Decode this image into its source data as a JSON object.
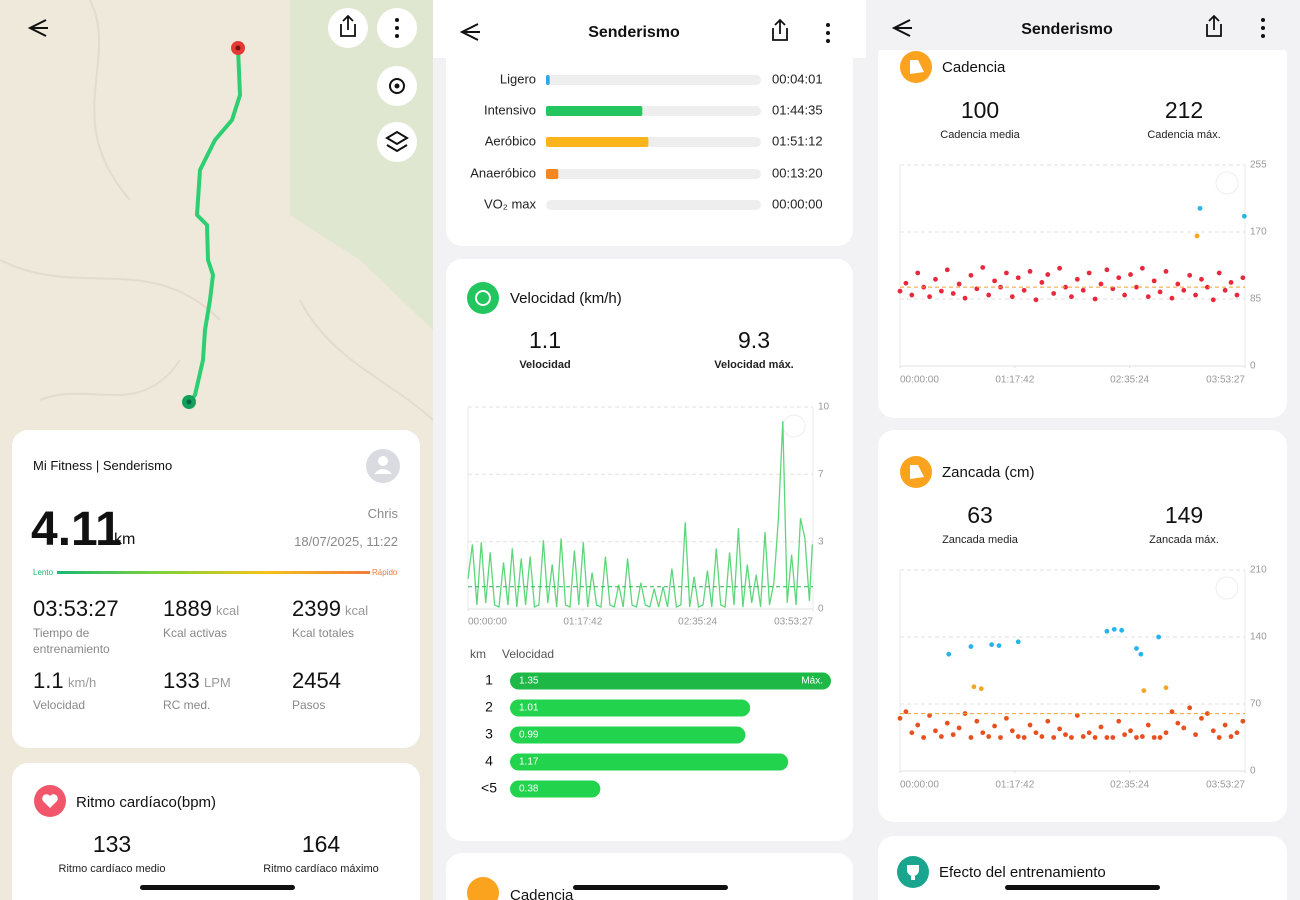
{
  "map_screen": {
    "card": {
      "app": "Mi Fitness | Senderismo",
      "user": "Chris",
      "distance": "4.11",
      "distance_unit": "km",
      "datetime": "18/07/2025, 11:22",
      "scale_low": "Lento",
      "scale_high": "Rápido",
      "stats": [
        {
          "value": "03:53:27",
          "label": "Tiempo de entrenamiento"
        },
        {
          "value": "1889",
          "unit": "kcal",
          "label": "Kcal activas"
        },
        {
          "value": "2399",
          "unit": "kcal",
          "label": "Kcal totales"
        },
        {
          "value": "1.1",
          "unit": "km/h",
          "label": "Velocidad"
        },
        {
          "value": "133",
          "unit": "LPM",
          "label": "RC med."
        },
        {
          "value": "2454",
          "label": "Pasos"
        }
      ]
    },
    "heart": {
      "title": "Ritmo cardíaco(bpm)",
      "avg": "133",
      "avg_label": "Ritmo cardíaco medio",
      "max": "164",
      "max_label": "Ritmo cardíaco máximo"
    }
  },
  "detail_screen": {
    "header": "Senderismo",
    "zones": {
      "xlim": [
        0,
        233.45
      ],
      "rows": [
        {
          "name": "Ligero",
          "time": "00:04:01",
          "minutes": 4.02,
          "color": "#2aa8f0"
        },
        {
          "name": "Intensivo",
          "time": "01:44:35",
          "minutes": 104.58,
          "color": "#22c55e"
        },
        {
          "name": "Aeróbico",
          "time": "01:51:12",
          "minutes": 111.2,
          "color": "#fbb41a"
        },
        {
          "name": "Anaeróbico",
          "time": "00:13:20",
          "minutes": 13.33,
          "color": "#f7861e"
        },
        {
          "name": "VO₂ max",
          "time": "00:00:00",
          "minutes": 0,
          "color": "#e74c3c"
        }
      ]
    },
    "speed": {
      "title": "Velocidad (km/h)",
      "avg": "1.1",
      "avg_label": "Velocidad",
      "max": "9.3",
      "max_label": "Velocidad máx.",
      "chart": {
        "type": "line",
        "color": "#5ed67a",
        "reference_line": 1.1,
        "reference_color": "#2fb350",
        "xlim": [
          0,
          233.45
        ],
        "ylim": [
          0,
          10
        ],
        "xticks": [
          {
            "value": 0,
            "label": "00:00:00"
          },
          {
            "value": 77.7,
            "label": "01:17:42"
          },
          {
            "value": 155.4,
            "label": "02:35:24"
          },
          {
            "value": 233.45,
            "label": "03:53:27"
          }
        ],
        "yticks": [
          0,
          {
            "value": 3.33,
            "label": "3"
          },
          {
            "value": 6.67,
            "label": "7"
          },
          10
        ],
        "grid": true,
        "x": [
          0,
          3,
          6,
          9,
          12,
          15,
          18,
          21,
          24,
          27,
          30,
          33,
          36,
          39,
          42,
          45,
          48,
          51,
          54,
          57,
          60,
          63,
          66,
          69,
          72,
          75,
          78,
          81,
          84,
          87,
          90,
          93,
          96,
          99,
          102,
          105,
          108,
          111,
          114,
          117,
          120,
          123,
          126,
          129,
          132,
          135,
          138,
          141,
          144,
          147,
          150,
          153,
          156,
          159,
          162,
          165,
          168,
          171,
          174,
          177,
          180,
          183,
          186,
          189,
          192,
          195,
          198,
          201,
          204,
          207,
          210,
          213,
          216,
          219,
          222,
          225,
          228,
          231,
          233
        ],
        "values": [
          1.5,
          3.2,
          0.2,
          3.3,
          0.3,
          2.8,
          0.2,
          0.1,
          2.3,
          0.2,
          3.0,
          0.1,
          2.5,
          0.2,
          2.6,
          0.1,
          0.2,
          3.4,
          0.3,
          2.2,
          0.1,
          3.5,
          0.2,
          0.1,
          2.9,
          0.2,
          3.3,
          0.1,
          1.8,
          0.2,
          0.1,
          2.6,
          0.2,
          0.1,
          1.2,
          0.1,
          2.5,
          0.2,
          0.1,
          1.3,
          0.2,
          0.1,
          1.0,
          0.1,
          1.1,
          0.1,
          2.0,
          0.1,
          0.2,
          4.3,
          0.1,
          1.6,
          0.1,
          0.2,
          1.9,
          0.1,
          3.0,
          0.2,
          0.1,
          2.8,
          0.2,
          4.0,
          0.1,
          2.2,
          0.3,
          1.7,
          0.1,
          3.8,
          0.2,
          1.3,
          4.4,
          9.3,
          0.3,
          2.7,
          0.2,
          4.5,
          3.5,
          0.4,
          3.2
        ]
      },
      "km_table": {
        "headers": [
          "km",
          "Velocidad"
        ],
        "xlim": [
          0,
          1.35
        ],
        "rows": [
          {
            "km": "1",
            "value": 1.35,
            "tag": "Máx."
          },
          {
            "km": "2",
            "value": 1.01
          },
          {
            "km": "3",
            "value": 0.99
          },
          {
            "km": "4",
            "value": 1.17
          },
          {
            "km": "<5",
            "value": 0.38
          }
        ]
      }
    },
    "next_card": "Cadencia"
  },
  "third_screen": {
    "header": "Senderismo",
    "cadence": {
      "title": "Cadencia",
      "avg": "100",
      "avg_label": "Cadencia media",
      "max": "212",
      "max_label": "Cadencia máx.",
      "chart": {
        "type": "scatter",
        "reference_line": 100,
        "reference_color": "#f0a030",
        "xlim": [
          0,
          233.45
        ],
        "ylim": [
          0,
          255
        ],
        "xticks": [
          {
            "value": 0,
            "label": "00:00:00"
          },
          {
            "value": 77.7,
            "label": "01:17:42"
          },
          {
            "value": 155.4,
            "label": "02:35:24"
          },
          {
            "value": 233.45,
            "label": "03:53:27"
          }
        ],
        "yticks": [
          0,
          85,
          170,
          255
        ],
        "grid": true,
        "series": [
          {
            "color": "#e8283c",
            "x": [
              0,
              4,
              8,
              12,
              16,
              20,
              24,
              28,
              32,
              36,
              40,
              44,
              48,
              52,
              56,
              60,
              64,
              68,
              72,
              76,
              80,
              84,
              88,
              92,
              96,
              100,
              104,
              108,
              112,
              116,
              120,
              124,
              128,
              132,
              136,
              140,
              144,
              148,
              152,
              156,
              160,
              164,
              168,
              172,
              176,
              180,
              184,
              188,
              192,
              196,
              200,
              204,
              208,
              212,
              216,
              220,
              224,
              228,
              232
            ],
            "values": [
              95,
              105,
              90,
              118,
              100,
              88,
              110,
              95,
              122,
              92,
              104,
              86,
              115,
              98,
              125,
              90,
              108,
              100,
              118,
              88,
              112,
              96,
              120,
              84,
              106,
              116,
              92,
              124,
              100,
              88,
              110,
              96,
              118,
              85,
              104,
              122,
              98,
              112,
              90,
              116,
              100,
              124,
              88,
              108,
              94,
              120,
              86,
              104,
              96,
              115,
              90,
              110,
              100,
              84,
              118,
              96,
              106,
              90,
              112
            ]
          },
          {
            "color": "#27b4ea",
            "x": [
              203,
              233
            ],
            "values": [
              200,
              190
            ]
          },
          {
            "color": "#f5a623",
            "x": [
              201
            ],
            "values": [
              165
            ]
          }
        ]
      }
    },
    "stride": {
      "title": "Zancada (cm)",
      "avg": "63",
      "avg_label": "Zancada media",
      "max": "149",
      "max_label": "Zancada máx.",
      "chart": {
        "type": "scatter",
        "reference_line": 60,
        "reference_color": "#f0a030",
        "xlim": [
          0,
          233.45
        ],
        "ylim": [
          0,
          210
        ],
        "xticks": [
          {
            "value": 0,
            "label": "00:00:00"
          },
          {
            "value": 77.7,
            "label": "01:17:42"
          },
          {
            "value": 155.4,
            "label": "02:35:24"
          },
          {
            "value": 233.45,
            "label": "03:53:27"
          }
        ],
        "yticks": [
          0,
          70,
          140,
          210
        ],
        "grid": true,
        "series": [
          {
            "color": "#e8501e",
            "x": [
              0,
              4,
              8,
              12,
              16,
              20,
              24,
              28,
              32,
              36,
              40,
              44,
              48,
              52,
              56,
              60,
              64,
              68,
              72,
              76,
              80,
              84,
              88,
              92,
              96,
              100,
              104,
              108,
              112,
              116,
              120,
              124,
              128,
              132,
              136,
              140,
              144,
              148,
              152,
              156,
              160,
              164,
              168,
              172,
              176,
              180,
              184,
              188,
              192,
              196,
              200,
              204,
              208,
              212,
              216,
              220,
              224,
              228,
              232
            ],
            "values": [
              55,
              62,
              40,
              48,
              35,
              58,
              42,
              36,
              50,
              38,
              45,
              60,
              35,
              52,
              40,
              36,
              47,
              35,
              55,
              42,
              36,
              35,
              48,
              40,
              36,
              52,
              35,
              44,
              38,
              35,
              58,
              36,
              40,
              35,
              46,
              35,
              35,
              52,
              38,
              42,
              35,
              36,
              48,
              35,
              35,
              40,
              62,
              50,
              45,
              66,
              38,
              55,
              60,
              42,
              35,
              48,
              36,
              40,
              52
            ]
          },
          {
            "color": "#27b4ea",
            "x": [
              33,
              48,
              62,
              67,
              80,
              140,
              145,
              150,
              160,
              163,
              175
            ],
            "values": [
              122,
              130,
              132,
              131,
              135,
              146,
              148,
              147,
              128,
              122,
              140
            ]
          },
          {
            "color": "#f5a623",
            "x": [
              50,
              55,
              165,
              180
            ],
            "values": [
              88,
              86,
              84,
              87
            ]
          }
        ]
      }
    },
    "effect": "Efecto del entrenamiento"
  }
}
